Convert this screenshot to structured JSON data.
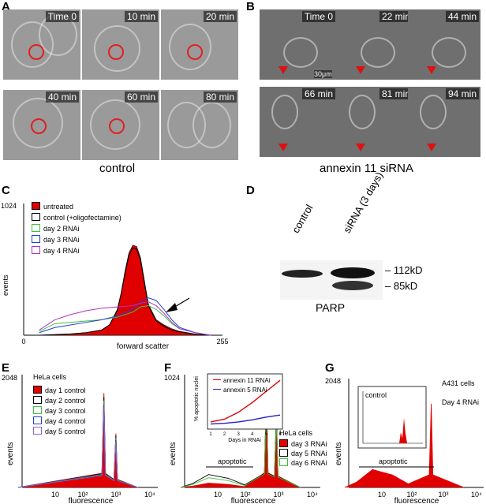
{
  "panels": {
    "A": "A",
    "B": "B",
    "C": "C",
    "D": "D",
    "E": "E",
    "F": "F",
    "G": "G"
  },
  "panel_a": {
    "times": [
      "Time 0",
      "10 min",
      "20 min",
      "40 min",
      "60 min",
      "80 min"
    ],
    "caption": "control"
  },
  "panel_b": {
    "times": [
      "Time 0",
      "22 min",
      "44 min",
      "66 min",
      "81 min",
      "94 min"
    ],
    "scale": "30μm",
    "caption": "annexin 11 siRNA"
  },
  "panel_d": {
    "lanes": [
      "control",
      "siRNA (3 days)"
    ],
    "bands": [
      "112kD",
      "85kD"
    ],
    "caption": "PARP"
  },
  "chart_data": [
    {
      "panel": "C",
      "type": "area",
      "xlabel": "forward scatter",
      "ylabel": "events",
      "x_ticks": [
        "0",
        "255"
      ],
      "y_ticks": [
        "1024"
      ],
      "xlim": [
        0,
        255
      ],
      "ylim": [
        0,
        1024
      ],
      "legend": [
        "untreated",
        "control (+oligofectamine)",
        "day 2 RNAi",
        "day 3 RNAi",
        "day 4 RNAi"
      ],
      "colors": [
        "#e00000",
        "#000000",
        "#40c040",
        "#2040d0",
        "#b030c0"
      ],
      "series": [
        {
          "name": "untreated",
          "x": [
            20,
            60,
            80,
            100,
            110,
            120,
            125,
            130,
            135,
            140,
            145,
            150,
            155,
            160,
            170,
            180,
            190,
            200,
            220,
            240
          ],
          "y": [
            0,
            10,
            20,
            40,
            80,
            200,
            330,
            500,
            640,
            700,
            690,
            600,
            420,
            240,
            120,
            80,
            50,
            30,
            10,
            0
          ]
        },
        {
          "name": "control (+oligofectamine)",
          "x": [
            20,
            60,
            80,
            100,
            110,
            120,
            125,
            130,
            135,
            140,
            145,
            150,
            155,
            160,
            170,
            180,
            190,
            200,
            220,
            240
          ],
          "y": [
            0,
            10,
            20,
            40,
            80,
            190,
            320,
            480,
            620,
            680,
            670,
            580,
            400,
            230,
            110,
            70,
            40,
            25,
            8,
            0
          ]
        },
        {
          "name": "day 2 RNAi",
          "x": [
            20,
            40,
            60,
            80,
            100,
            120,
            140,
            150,
            160,
            170,
            180,
            190,
            200,
            220,
            240
          ],
          "y": [
            30,
            90,
            100,
            110,
            120,
            140,
            180,
            220,
            230,
            200,
            150,
            90,
            50,
            20,
            0
          ]
        },
        {
          "name": "day 3 RNAi",
          "x": [
            20,
            40,
            60,
            80,
            100,
            120,
            140,
            150,
            160,
            170,
            180,
            190,
            200,
            220,
            240
          ],
          "y": [
            20,
            60,
            80,
            100,
            120,
            150,
            200,
            260,
            290,
            270,
            200,
            120,
            60,
            20,
            0
          ]
        },
        {
          "name": "day 4 RNAi",
          "x": [
            20,
            40,
            60,
            80,
            100,
            120,
            140,
            150,
            160,
            170,
            180,
            190,
            200,
            220,
            240
          ],
          "y": [
            40,
            120,
            160,
            190,
            210,
            220,
            230,
            250,
            260,
            230,
            170,
            100,
            50,
            20,
            0
          ]
        }
      ],
      "annotation": "arrow pointing at shoulder near x≈175"
    },
    {
      "panel": "E",
      "type": "area",
      "title": "HeLa cells",
      "xlabel": "fluorescence",
      "ylabel": "events",
      "x_ticks": [
        "10",
        "10²",
        "10³",
        "10⁴"
      ],
      "y_ticks": [
        "2048"
      ],
      "xscale": "log",
      "legend": [
        "day 1 control",
        "day 2 control",
        "day 3 control",
        "day 4 control",
        "day 5 control"
      ],
      "colors": [
        "#e00000",
        "#000000",
        "#40c040",
        "#2040d0",
        "#9060d0"
      ],
      "peaks_log10x": [
        2.75,
        3.05
      ],
      "peak_heights": [
        1750,
        1000
      ]
    },
    {
      "panel": "F",
      "type": "area",
      "title": "HeLa cells",
      "xlabel": "fluorescence",
      "ylabel": "events",
      "x_ticks": [
        "10",
        "10²",
        "10³",
        "10⁴"
      ],
      "y_ticks": [
        "1024"
      ],
      "xscale": "log",
      "legend": [
        "day 3 RNAi",
        "day 5 RNAi",
        "day 6 RNAi"
      ],
      "colors": [
        "#e00000",
        "#000000",
        "#40c040"
      ],
      "annotation": "apoptotic",
      "inset": {
        "type": "line",
        "ylabel": "% apoptotic nuclei",
        "xlabel": "Days in RNAi",
        "x_ticks": [
          "1",
          "2",
          "3",
          "4",
          "5",
          "6"
        ],
        "y_ticks": [
          "10",
          "20",
          "30",
          "40",
          "50",
          "60",
          "70"
        ],
        "series": [
          {
            "name": "annexin 11 RNAi",
            "color": "#e00000",
            "x": [
              1,
              2,
              3,
              4,
              5,
              6
            ],
            "y": [
              8,
              12,
              22,
              36,
              52,
              68
            ]
          },
          {
            "name": "annexin 5 RNAi",
            "color": "#2020c0",
            "x": [
              1,
              2,
              3,
              4,
              5,
              6
            ],
            "y": [
              5,
              6,
              8,
              11,
              15,
              18
            ]
          }
        ]
      }
    },
    {
      "panel": "G",
      "type": "area",
      "title": "A431 cells",
      "subtitle": "Day 4 RNAi",
      "xlabel": "fluorescence",
      "ylabel": "events",
      "x_ticks": [
        "10",
        "10²",
        "10³",
        "10⁴"
      ],
      "y_ticks": [
        "2048"
      ],
      "xscale": "log",
      "annotation": "apoptotic",
      "inset_label": "control"
    }
  ]
}
